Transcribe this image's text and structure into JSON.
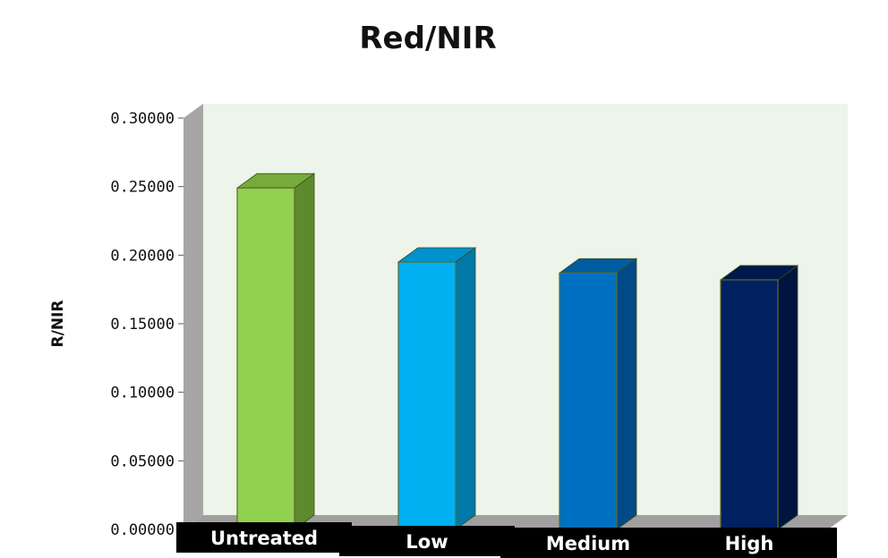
{
  "chart_data": {
    "type": "bar",
    "title": "Red/NIR",
    "xlabel": "",
    "ylabel": "R/NIR",
    "ylim": [
      0,
      0.3
    ],
    "yticks": [
      "0.00000",
      "0.05000",
      "0.10000",
      "0.15000",
      "0.20000",
      "0.25000",
      "0.30000"
    ],
    "categories": [
      "Untreated",
      "Low",
      "Medium",
      "High"
    ],
    "values": [
      0.249,
      0.195,
      0.187,
      0.182
    ],
    "bar_colors": [
      "#92d050",
      "#00b0f0",
      "#0070c0",
      "#002060"
    ],
    "bar_side_colors": [
      "#5e8a2e",
      "#007aa8",
      "#004a85",
      "#001440"
    ],
    "bar_top_colors": [
      "#76aa3a",
      "#0092cc",
      "#005ca0",
      "#00184a"
    ],
    "grid": false,
    "legend": "none",
    "plot_background": "#edf4ea"
  }
}
